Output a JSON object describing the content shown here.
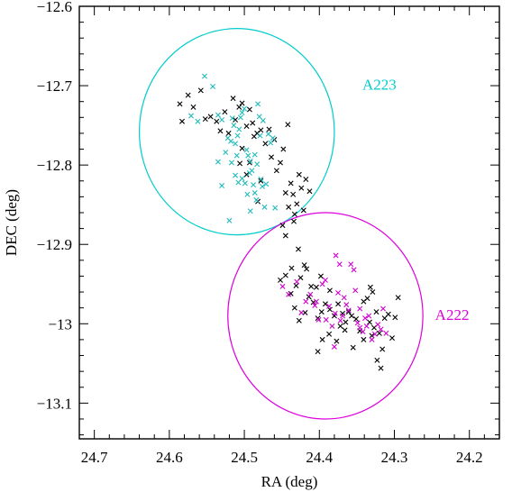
{
  "chart_data": {
    "type": "scatter",
    "xlabel": "RA (deg)",
    "ylabel": "DEC (deg)",
    "xlim": [
      24.72,
      24.16
    ],
    "ylim": [
      -13.145,
      -12.6
    ],
    "x_reversed": true,
    "x_ticks": [
      24.7,
      24.6,
      24.5,
      24.4,
      24.3,
      24.2
    ],
    "x_tick_labels": [
      "24.7",
      "24.6",
      "24.5",
      "24.4",
      "24.3",
      "24.2"
    ],
    "y_ticks": [
      -12.6,
      -12.7,
      -12.8,
      -12.9,
      -13.0,
      -13.1
    ],
    "y_tick_labels": [
      "−12.6",
      "−12.7",
      "−12.8",
      "−12.9",
      "−13",
      "−13.1"
    ],
    "grid": false,
    "annotations": [
      {
        "text": "A223",
        "x": 24.32,
        "y": -12.705,
        "color": "#00cccc"
      },
      {
        "text": "A222",
        "x": 24.223,
        "y": -12.995,
        "color": "#dd00dd"
      }
    ],
    "circles": [
      {
        "name": "A223 aperture",
        "cx": 24.51,
        "cy": -12.758,
        "r": 0.13,
        "color": "#00cccc"
      },
      {
        "name": "A222 aperture",
        "cx": 24.392,
        "cy": -12.99,
        "r": 0.13,
        "color": "#dd00dd"
      }
    ],
    "series": [
      {
        "marker": "x",
        "color": "#000000",
        "points": [
          [
            24.586,
            -12.723
          ],
          [
            24.583,
            -12.745
          ],
          [
            24.575,
            -12.712
          ],
          [
            24.568,
            -12.727
          ],
          [
            24.558,
            -12.706
          ],
          [
            24.552,
            -12.742
          ],
          [
            24.545,
            -12.739
          ],
          [
            24.537,
            -12.745
          ],
          [
            24.532,
            -12.757
          ],
          [
            24.526,
            -12.733
          ],
          [
            24.521,
            -12.76
          ],
          [
            24.515,
            -12.716
          ],
          [
            24.512,
            -12.743
          ],
          [
            24.507,
            -12.727
          ],
          [
            24.503,
            -12.722
          ],
          [
            24.497,
            -12.751
          ],
          [
            24.493,
            -12.73
          ],
          [
            24.489,
            -12.747
          ],
          [
            24.487,
            -12.764
          ],
          [
            24.483,
            -12.76
          ],
          [
            24.478,
            -12.756
          ],
          [
            24.472,
            -12.773
          ],
          [
            24.467,
            -12.755
          ],
          [
            24.464,
            -12.79
          ],
          [
            24.46,
            -12.768
          ],
          [
            24.457,
            -12.807
          ],
          [
            24.452,
            -12.797
          ],
          [
            24.448,
            -12.78
          ],
          [
            24.445,
            -12.835
          ],
          [
            24.442,
            -12.749
          ],
          [
            24.438,
            -12.823
          ],
          [
            24.435,
            -12.837
          ],
          [
            24.433,
            -12.862
          ],
          [
            24.43,
            -12.849
          ],
          [
            24.427,
            -12.812
          ],
          [
            24.424,
            -12.829
          ],
          [
            24.421,
            -12.857
          ],
          [
            24.418,
            -12.818
          ],
          [
            24.413,
            -12.833
          ],
          [
            24.503,
            -12.779
          ],
          [
            24.493,
            -12.797
          ],
          [
            24.497,
            -12.812
          ],
          [
            24.506,
            -12.798
          ],
          [
            24.478,
            -12.82
          ],
          [
            24.482,
            -12.846
          ],
          [
            24.449,
            -12.876
          ],
          [
            24.445,
            -12.889
          ],
          [
            24.434,
            -12.871
          ],
          [
            24.441,
            -12.853
          ],
          [
            24.445,
            -12.939
          ],
          [
            24.437,
            -12.93
          ],
          [
            24.438,
            -12.962
          ],
          [
            24.431,
            -12.952
          ],
          [
            24.425,
            -12.942
          ],
          [
            24.433,
            -12.98
          ],
          [
            24.427,
            -12.996
          ],
          [
            24.419,
            -12.986
          ],
          [
            24.414,
            -12.966
          ],
          [
            24.42,
            -12.926
          ],
          [
            24.408,
            -12.973
          ],
          [
            24.404,
            -12.954
          ],
          [
            24.402,
            -12.993
          ],
          [
            24.397,
            -12.985
          ],
          [
            24.392,
            -12.975
          ],
          [
            24.386,
            -12.982
          ],
          [
            24.38,
            -12.99
          ],
          [
            24.375,
            -12.975
          ],
          [
            24.372,
            -13.003
          ],
          [
            24.369,
            -12.987
          ],
          [
            24.365,
            -12.998
          ],
          [
            24.361,
            -12.985
          ],
          [
            24.357,
            -12.99
          ],
          [
            24.351,
            -12.994
          ],
          [
            24.346,
            -13.009
          ],
          [
            24.341,
            -12.972
          ],
          [
            24.336,
            -12.968
          ],
          [
            24.333,
            -12.998
          ],
          [
            24.33,
            -13.015
          ],
          [
            24.327,
            -13.005
          ],
          [
            24.324,
            -12.985
          ],
          [
            24.32,
            -13.012
          ],
          [
            24.316,
            -13.032
          ],
          [
            24.313,
            -12.993
          ],
          [
            24.308,
            -12.988
          ],
          [
            24.303,
            -13.018
          ],
          [
            24.299,
            -12.992
          ],
          [
            24.295,
            -12.967
          ],
          [
            24.332,
            -12.954
          ],
          [
            24.329,
            -12.96
          ],
          [
            24.402,
            -13.035
          ],
          [
            24.396,
            -13.02
          ],
          [
            24.387,
            -13.013
          ],
          [
            24.377,
            -13.022
          ],
          [
            24.355,
            -13.03
          ],
          [
            24.341,
            -13.02
          ],
          [
            24.323,
            -13.046
          ],
          [
            24.318,
            -13.056
          ],
          [
            24.366,
            -13.008
          ],
          [
            24.386,
            -12.958
          ],
          [
            24.398,
            -12.94
          ],
          [
            24.452,
            -12.945
          ],
          [
            24.428,
            -12.906
          ],
          [
            24.417,
            -12.931
          ],
          [
            24.411,
            -12.953
          ]
        ]
      },
      {
        "marker": "x",
        "color": "#22bbbb",
        "points": [
          [
            24.571,
            -12.738
          ],
          [
            24.562,
            -12.745
          ],
          [
            24.553,
            -12.688
          ],
          [
            24.542,
            -12.701
          ],
          [
            24.535,
            -12.737
          ],
          [
            24.53,
            -12.743
          ],
          [
            24.525,
            -12.784
          ],
          [
            24.522,
            -12.766
          ],
          [
            24.518,
            -12.77
          ],
          [
            24.516,
            -12.741
          ],
          [
            24.514,
            -12.75
          ],
          [
            24.512,
            -12.773
          ],
          [
            24.509,
            -12.763
          ],
          [
            24.507,
            -12.755
          ],
          [
            24.505,
            -12.74
          ],
          [
            24.503,
            -12.734
          ],
          [
            24.5,
            -12.729
          ],
          [
            24.497,
            -12.781
          ],
          [
            24.495,
            -12.788
          ],
          [
            24.492,
            -12.795
          ],
          [
            24.49,
            -12.807
          ],
          [
            24.488,
            -12.825
          ],
          [
            24.486,
            -12.835
          ],
          [
            24.484,
            -12.844
          ],
          [
            24.482,
            -12.723
          ],
          [
            24.48,
            -12.739
          ],
          [
            24.478,
            -12.818
          ],
          [
            24.476,
            -12.827
          ],
          [
            24.473,
            -12.853
          ],
          [
            24.471,
            -12.824
          ],
          [
            24.468,
            -12.761
          ],
          [
            24.465,
            -12.772
          ],
          [
            24.462,
            -12.766
          ],
          [
            24.459,
            -12.854
          ],
          [
            24.535,
            -12.796
          ],
          [
            24.53,
            -12.826
          ],
          [
            24.52,
            -12.87
          ],
          [
            24.517,
            -12.797
          ],
          [
            24.512,
            -12.813
          ],
          [
            24.508,
            -12.822
          ],
          [
            24.503,
            -12.817
          ],
          [
            24.499,
            -12.823
          ],
          [
            24.496,
            -12.837
          ],
          [
            24.492,
            -12.858
          ],
          [
            24.486,
            -12.787
          ],
          [
            24.483,
            -12.799
          ],
          [
            24.479,
            -12.763
          ],
          [
            24.475,
            -12.744
          ],
          [
            24.51,
            -12.788
          ],
          [
            24.493,
            -12.81
          ]
        ]
      },
      {
        "marker": "x",
        "color": "#cc00cc",
        "points": [
          [
            24.449,
            -12.953
          ],
          [
            24.441,
            -12.963
          ],
          [
            24.43,
            -12.947
          ],
          [
            24.424,
            -12.986
          ],
          [
            24.418,
            -12.972
          ],
          [
            24.412,
            -12.963
          ],
          [
            24.406,
            -12.977
          ],
          [
            24.401,
            -12.995
          ],
          [
            24.396,
            -12.95
          ],
          [
            24.391,
            -12.995
          ],
          [
            24.387,
            -12.978
          ],
          [
            24.383,
            -13.003
          ],
          [
            24.379,
            -12.987
          ],
          [
            24.375,
            -12.961
          ],
          [
            24.372,
            -12.996
          ],
          [
            24.369,
            -12.99
          ],
          [
            24.367,
            -12.967
          ],
          [
            24.364,
            -12.976
          ],
          [
            24.361,
            -12.983
          ],
          [
            24.358,
            -12.925
          ],
          [
            24.354,
            -12.932
          ],
          [
            24.352,
            -12.958
          ],
          [
            24.349,
            -12.999
          ],
          [
            24.346,
            -13.005
          ],
          [
            24.342,
            -13.01
          ],
          [
            24.339,
            -12.993
          ],
          [
            24.337,
            -13.003
          ],
          [
            24.334,
            -12.99
          ],
          [
            24.33,
            -13.02
          ],
          [
            24.326,
            -13.013
          ],
          [
            24.322,
            -13.001
          ],
          [
            24.318,
            -13.007
          ],
          [
            24.315,
            -12.981
          ],
          [
            24.311,
            -13.012
          ],
          [
            24.378,
            -12.914
          ],
          [
            24.373,
            -12.925
          ],
          [
            24.392,
            -12.945
          ],
          [
            24.404,
            -12.972
          ],
          [
            24.38,
            -13.029
          ],
          [
            24.346,
            -12.981
          ]
        ]
      }
    ]
  }
}
